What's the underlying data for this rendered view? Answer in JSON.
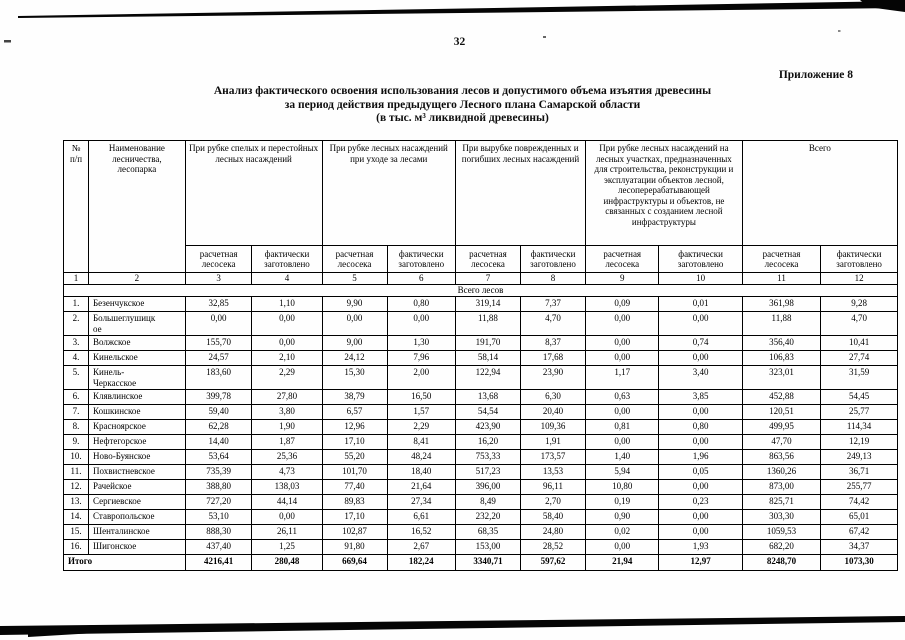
{
  "page": {
    "number": "32",
    "appendix_label": "Приложение 8"
  },
  "title": {
    "line1": "Анализ фактического освоения использования лесов и допустимого объема изъятия древесины",
    "line2": "за период действия предыдущего Лесного плана Самарской области",
    "line3": "(в тыс. м³ ликвидной древесины)"
  },
  "table": {
    "headers": {
      "num": "№ п/п",
      "name": "Наименование лесничества, лесопарка",
      "groups": [
        "При рубке спелых и перестойных лесных насаждений",
        "При рубке лесных насаждений при уходе за лесами",
        "При вырубке поврежденных и погибших лесных насаждений",
        "При рубке лесных насаждений на лесных участках, предназначенных для строительства, реконструкции и эксплуатации объектов лесной, лесоперерабатывающей инфраструктуры и объектов, не связанных с созданием лесной инфраструктуры",
        "Всего"
      ],
      "sub_calc": "расчетная лесосека",
      "sub_fact": "фактически заготовлено",
      "col_numbers": [
        "1",
        "2",
        "3",
        "4",
        "5",
        "6",
        "7",
        "8",
        "9",
        "10",
        "11",
        "12"
      ]
    },
    "section_label": "Всего лесов",
    "rows": [
      {
        "num": "1.",
        "name": "Безенчукское",
        "values": [
          "32,85",
          "1,10",
          "9,90",
          "0,80",
          "319,14",
          "7,37",
          "0,09",
          "0,01",
          "361,98",
          "9,28"
        ]
      },
      {
        "num": "2.",
        "name": "Большеглушицкое",
        "values": [
          "0,00",
          "0,00",
          "0,00",
          "0,00",
          "11,88",
          "4,70",
          "0,00",
          "0,00",
          "11,88",
          "4,70"
        ]
      },
      {
        "num": "3.",
        "name": "Волжское",
        "values": [
          "155,70",
          "0,00",
          "9,00",
          "1,30",
          "191,70",
          "8,37",
          "0,00",
          "0,74",
          "356,40",
          "10,41"
        ]
      },
      {
        "num": "4.",
        "name": "Кинельское",
        "values": [
          "24,57",
          "2,10",
          "24,12",
          "7,96",
          "58,14",
          "17,68",
          "0,00",
          "0,00",
          "106,83",
          "27,74"
        ]
      },
      {
        "num": "5.",
        "name": "Кинель-Черкасское",
        "values": [
          "183,60",
          "2,29",
          "15,30",
          "2,00",
          "122,94",
          "23,90",
          "1,17",
          "3,40",
          "323,01",
          "31,59"
        ]
      },
      {
        "num": "6.",
        "name": "Клявлинское",
        "values": [
          "399,78",
          "27,80",
          "38,79",
          "16,50",
          "13,68",
          "6,30",
          "0,63",
          "3,85",
          "452,88",
          "54,45"
        ]
      },
      {
        "num": "7.",
        "name": "Кошкинское",
        "values": [
          "59,40",
          "3,80",
          "6,57",
          "1,57",
          "54,54",
          "20,40",
          "0,00",
          "0,00",
          "120,51",
          "25,77"
        ]
      },
      {
        "num": "8.",
        "name": "Красноярское",
        "values": [
          "62,28",
          "1,90",
          "12,96",
          "2,29",
          "423,90",
          "109,36",
          "0,81",
          "0,80",
          "499,95",
          "114,34"
        ]
      },
      {
        "num": "9.",
        "name": "Нефтегорское",
        "values": [
          "14,40",
          "1,87",
          "17,10",
          "8,41",
          "16,20",
          "1,91",
          "0,00",
          "0,00",
          "47,70",
          "12,19"
        ]
      },
      {
        "num": "10.",
        "name": "Ново-Буянское",
        "values": [
          "53,64",
          "25,36",
          "55,20",
          "48,24",
          "753,33",
          "173,57",
          "1,40",
          "1,96",
          "863,56",
          "249,13"
        ]
      },
      {
        "num": "11.",
        "name": "Похвистневское",
        "values": [
          "735,39",
          "4,73",
          "101,70",
          "18,40",
          "517,23",
          "13,53",
          "5,94",
          "0,05",
          "1360,26",
          "36,71"
        ]
      },
      {
        "num": "12.",
        "name": "Рачейское",
        "values": [
          "388,80",
          "138,03",
          "77,40",
          "21,64",
          "396,00",
          "96,11",
          "10,80",
          "0,00",
          "873,00",
          "255,77"
        ]
      },
      {
        "num": "13.",
        "name": "Сергиевское",
        "values": [
          "727,20",
          "44,14",
          "89,83",
          "27,34",
          "8,49",
          "2,70",
          "0,19",
          "0,23",
          "825,71",
          "74,42"
        ]
      },
      {
        "num": "14.",
        "name": "Ставропольское",
        "values": [
          "53,10",
          "0,00",
          "17,10",
          "6,61",
          "232,20",
          "58,40",
          "0,90",
          "0,00",
          "303,30",
          "65,01"
        ]
      },
      {
        "num": "15.",
        "name": "Шенталинское",
        "values": [
          "888,30",
          "26,11",
          "102,87",
          "16,52",
          "68,35",
          "24,80",
          "0,02",
          "0,00",
          "1059,53",
          "67,42"
        ]
      },
      {
        "num": "16.",
        "name": "Шигонское",
        "values": [
          "437,40",
          "1,25",
          "91,80",
          "2,67",
          "153,00",
          "28,52",
          "0,00",
          "1,93",
          "682,20",
          "34,37"
        ]
      }
    ],
    "total": {
      "label": "Итого",
      "values": [
        "4216,41",
        "280,48",
        "669,64",
        "182,24",
        "3340,71",
        "597,62",
        "21,94",
        "12,97",
        "8248,70",
        "1073,30"
      ]
    }
  }
}
